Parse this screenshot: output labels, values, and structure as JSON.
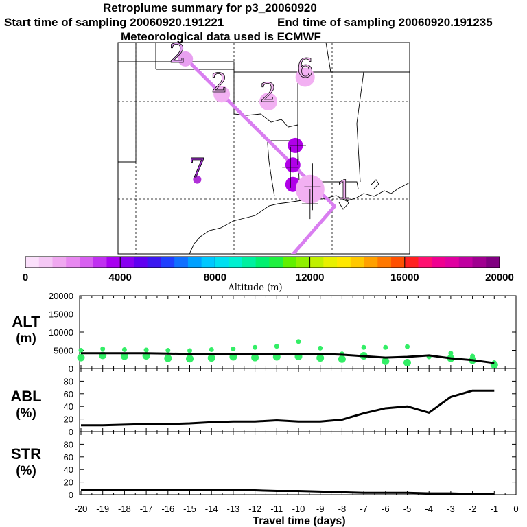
{
  "title": {
    "line1": "Retroplume summary for p3_20060920",
    "start": "Start time of sampling 20060920.191221",
    "end": "End time of sampling 20060920.191235",
    "line3": "Meteorological data used is ECMWF"
  },
  "colors": {
    "plume_line": "#d97ef0",
    "cluster_light": "#f2b0f2",
    "cluster_dark": "#b000e8",
    "alt_points": "#33ee66"
  },
  "map": {
    "cluster_labels": [
      {
        "label": "2",
        "lon": -102.3,
        "lat": 36.6,
        "color": "#e0a0f0"
      },
      {
        "label": "2",
        "lon": -100.6,
        "lat": 35.4,
        "color": "#f2b8f2"
      },
      {
        "label": "2",
        "lon": -98.6,
        "lat": 35.0,
        "color": "#f2b8f2"
      },
      {
        "label": "6",
        "lon": -97.1,
        "lat": 36.0,
        "color": "#f2b8f2"
      },
      {
        "label": "7",
        "lon": -101.5,
        "lat": 31.9,
        "color": "#a030d0"
      },
      {
        "label": "1",
        "lon": -95.5,
        "lat": 31.0,
        "color": "#f2b0f2"
      }
    ],
    "plume_track": [
      {
        "lon": -102.0,
        "lat": 36.8
      },
      {
        "lon": -97.7,
        "lat": 32.5
      },
      {
        "lon": -95.9,
        "lat": 30.7
      },
      {
        "lon": -98.4,
        "lat": 27.8
      }
    ]
  },
  "colorbar": {
    "label": "Altitude (m)",
    "ticks": [
      "0",
      "4000",
      "8000",
      "12000",
      "16000",
      "20000"
    ],
    "colors": [
      "#fbe0fb",
      "#f5c8f5",
      "#f0a8f0",
      "#e888f0",
      "#d860f0",
      "#c030f0",
      "#a800f0",
      "#8800f0",
      "#6000f0",
      "#3c18f0",
      "#2040ff",
      "#1070ff",
      "#00a0ff",
      "#00c8ff",
      "#00e0f0",
      "#00f0d0",
      "#00f0a0",
      "#00f070",
      "#20f040",
      "#60f000",
      "#90f000",
      "#c0f000",
      "#e8f000",
      "#ffe800",
      "#ffc800",
      "#ffa000",
      "#ff7800",
      "#ff5000",
      "#ff2020",
      "#ff1070",
      "#f00090",
      "#e000a0",
      "#c000a0",
      "#a00090",
      "#800080"
    ]
  },
  "chart_data": [
    {
      "type": "line",
      "panel": "ALT",
      "ylabel": "ALT (m)",
      "x": [
        -20,
        -19,
        -18,
        -17,
        -16,
        -15,
        -14,
        -13,
        -12,
        -11,
        -10,
        -9,
        -8,
        -7,
        -6,
        -5,
        -4,
        -3,
        -2,
        -1
      ],
      "values": [
        4200,
        4200,
        4200,
        4200,
        4100,
        4000,
        4000,
        4000,
        4000,
        4000,
        4000,
        4000,
        3800,
        3400,
        3000,
        3200,
        3600,
        2800,
        2300,
        1500
      ],
      "ylim": [
        0,
        20000
      ],
      "yticks": [
        "0",
        "5000",
        "10000",
        "15000",
        "20000"
      ],
      "scatter_points": [
        {
          "x": -20,
          "y": [
            5000,
            3000
          ]
        },
        {
          "x": -19,
          "y": [
            5400,
            3600
          ]
        },
        {
          "x": -18,
          "y": [
            5200,
            3400
          ]
        },
        {
          "x": -17,
          "y": [
            5100,
            3500
          ]
        },
        {
          "x": -16,
          "y": [
            5000,
            2800
          ]
        },
        {
          "x": -15,
          "y": [
            4900,
            2700
          ]
        },
        {
          "x": -14,
          "y": [
            5200,
            2900
          ]
        },
        {
          "x": -13,
          "y": [
            5400,
            3200
          ]
        },
        {
          "x": -12,
          "y": [
            5800,
            3000
          ]
        },
        {
          "x": -11,
          "y": [
            6100,
            3200
          ]
        },
        {
          "x": -10,
          "y": [
            7400,
            3300
          ]
        },
        {
          "x": -9,
          "y": [
            5600,
            2900
          ]
        },
        {
          "x": -8,
          "y": [
            4000,
            2600
          ]
        },
        {
          "x": -7,
          "y": [
            5800,
            3500
          ]
        },
        {
          "x": -6,
          "y": [
            5800,
            2000
          ]
        },
        {
          "x": -5,
          "y": [
            6000,
            1600
          ]
        },
        {
          "x": -4,
          "y": [
            3200
          ]
        },
        {
          "x": -3,
          "y": [
            4200,
            2800
          ]
        },
        {
          "x": -2,
          "y": [
            3400,
            2300
          ]
        },
        {
          "x": -1,
          "y": [
            1600,
            1000
          ]
        }
      ]
    },
    {
      "type": "line",
      "panel": "ABL",
      "ylabel": "ABL (%)",
      "x": [
        -20,
        -19,
        -18,
        -17,
        -16,
        -15,
        -14,
        -13,
        -12,
        -11,
        -10,
        -9,
        -8,
        -7,
        -6,
        -5,
        -4,
        -3,
        -2,
        -1
      ],
      "values": [
        10,
        10,
        11,
        12,
        12,
        13,
        15,
        16,
        16,
        18,
        16,
        16,
        19,
        29,
        37,
        40,
        30,
        55,
        65,
        65
      ],
      "ylim": [
        0,
        100
      ],
      "yticks": [
        "0",
        "20",
        "40",
        "60",
        "80"
      ]
    },
    {
      "type": "line",
      "panel": "STR",
      "ylabel": "STR (%)",
      "x": [
        -20,
        -19,
        -18,
        -17,
        -16,
        -15,
        -14,
        -13,
        -12,
        -11,
        -10,
        -9,
        -8,
        -7,
        -6,
        -5,
        -4,
        -3,
        -2,
        -1
      ],
      "values": [
        7,
        7,
        7,
        7,
        7,
        7,
        8,
        7,
        7,
        6,
        6,
        5,
        4,
        3,
        3,
        3,
        2,
        2,
        1,
        1
      ],
      "ylim": [
        0,
        100
      ],
      "yticks": [
        "0",
        "20",
        "40",
        "60",
        "80"
      ]
    }
  ],
  "xaxis": {
    "label": "Travel time (days)",
    "ticks": [
      "-20",
      "-19",
      "-18",
      "-17",
      "-16",
      "-15",
      "-14",
      "-13",
      "-12",
      "-11",
      "-10",
      "-9",
      "-8",
      "-7",
      "-6",
      "-5",
      "-4",
      "-3",
      "-2",
      "-1",
      "0"
    ]
  },
  "panels": {
    "alt": {
      "line1": "ALT",
      "line2": "(m)"
    },
    "abl": {
      "line1": "ABL",
      "line2": "(%)"
    },
    "str": {
      "line1": "STR",
      "line2": "(%)"
    }
  }
}
